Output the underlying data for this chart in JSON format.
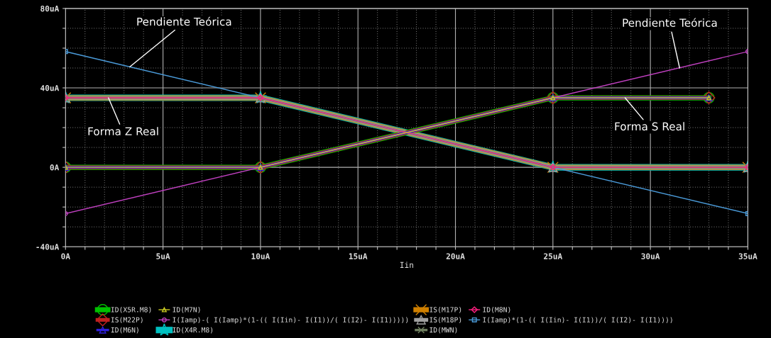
{
  "chart_data": {
    "type": "line",
    "xlabel": "Iin",
    "xlim": [
      0,
      35
    ],
    "ylim": [
      -40,
      80
    ],
    "xticks": [
      {
        "value": 0,
        "label": "0A"
      },
      {
        "value": 1,
        "label": null
      },
      {
        "value": 2,
        "label": null
      },
      {
        "value": 3,
        "label": null
      },
      {
        "value": 4,
        "label": null
      },
      {
        "value": 5,
        "label": "5uA"
      },
      {
        "value": 6,
        "label": null
      },
      {
        "value": 7,
        "label": null
      },
      {
        "value": 8,
        "label": null
      },
      {
        "value": 9,
        "label": null
      },
      {
        "value": 10,
        "label": "10uA"
      },
      {
        "value": 11,
        "label": null
      },
      {
        "value": 12,
        "label": null
      },
      {
        "value": 13,
        "label": null
      },
      {
        "value": 14,
        "label": null
      },
      {
        "value": 15,
        "label": "15uA"
      },
      {
        "value": 16,
        "label": null
      },
      {
        "value": 17,
        "label": null
      },
      {
        "value": 18,
        "label": null
      },
      {
        "value": 19,
        "label": null
      },
      {
        "value": 20,
        "label": "20uA"
      },
      {
        "value": 21,
        "label": null
      },
      {
        "value": 22,
        "label": null
      },
      {
        "value": 23,
        "label": null
      },
      {
        "value": 24,
        "label": null
      },
      {
        "value": 25,
        "label": "25uA"
      },
      {
        "value": 26,
        "label": null
      },
      {
        "value": 27,
        "label": null
      },
      {
        "value": 28,
        "label": null
      },
      {
        "value": 29,
        "label": null
      },
      {
        "value": 30,
        "label": "30uA"
      },
      {
        "value": 31,
        "label": null
      },
      {
        "value": 32,
        "label": null
      },
      {
        "value": 33,
        "label": null
      },
      {
        "value": 34,
        "label": null
      },
      {
        "value": 35,
        "label": "35uA"
      }
    ],
    "yticks": [
      {
        "value": -40,
        "label": "-40uA"
      },
      {
        "value": -30,
        "label": null
      },
      {
        "value": -20,
        "label": null
      },
      {
        "value": -10,
        "label": null
      },
      {
        "value": 0,
        "label": "0A"
      },
      {
        "value": 10,
        "label": null
      },
      {
        "value": 20,
        "label": null
      },
      {
        "value": 30,
        "label": null
      },
      {
        "value": 40,
        "label": "40uA"
      },
      {
        "value": 50,
        "label": null
      },
      {
        "value": 60,
        "label": null
      },
      {
        "value": 70,
        "label": null
      },
      {
        "value": 80,
        "label": "80uA"
      }
    ],
    "grid": true,
    "legend": "bottom",
    "series": [
      {
        "name": "ID(X5R.M8)",
        "color": "#00c000",
        "marker": "circle",
        "x": [
          0,
          10,
          25,
          33
        ],
        "values": [
          0,
          0,
          35,
          35
        ]
      },
      {
        "name": "IS(M22P)",
        "color": "#c02020",
        "marker": "diamond",
        "x": [
          0,
          10,
          25,
          33
        ],
        "values": [
          0,
          0,
          35,
          35
        ]
      },
      {
        "name": "ID(M6N)",
        "color": "#3020e0",
        "marker": "triangle",
        "x": [
          0,
          10,
          25,
          33
        ],
        "values": [
          0,
          0,
          35,
          35
        ]
      },
      {
        "name": "ID(M7N)",
        "color": "#c8c820",
        "marker": "triangle",
        "x": [
          0,
          10,
          25,
          33
        ],
        "values": [
          0,
          0,
          35,
          35
        ]
      },
      {
        "name": "I(Iamp)-( I(Iamp)*(1-(( I(Iin)- I(I1))/( I(I2)- I(I1)))))",
        "color": "#c040c0",
        "marker": "circle",
        "x": [
          0,
          35
        ],
        "values": [
          -23.3,
          58.3
        ]
      },
      {
        "name": "ID(X4R.M8)",
        "color": "#00c0c0",
        "marker": "star",
        "x": [
          0,
          10,
          25,
          35
        ],
        "values": [
          35,
          35,
          0,
          0
        ]
      },
      {
        "name": "IS(M17P)",
        "color": "#d08000",
        "marker": "cross",
        "x": [
          0,
          10,
          25,
          35
        ],
        "values": [
          35,
          35,
          0,
          0
        ]
      },
      {
        "name": "IS(M18P)",
        "color": "#a0a0a0",
        "marker": "triangle",
        "x": [
          0,
          10,
          25,
          35
        ],
        "values": [
          35,
          35,
          0,
          0
        ]
      },
      {
        "name": "ID(MWN)",
        "color": "#708060",
        "marker": "cross",
        "x": [
          0,
          10,
          25,
          35
        ],
        "values": [
          35,
          35,
          0,
          0
        ]
      },
      {
        "name": "ID(M8N)",
        "color": "#ff2080",
        "marker": "diamond",
        "x": [
          0,
          10,
          25,
          35
        ],
        "values": [
          35,
          35,
          0,
          0
        ]
      },
      {
        "name": "I(Iamp)*(1-(( I(Iin)- I(I1))/( I(I2)- I(I1))))",
        "color": "#4a9ad8",
        "marker": "square",
        "x": [
          0,
          35
        ],
        "values": [
          58.3,
          -23.3
        ]
      }
    ],
    "annotations": [
      {
        "text": "Pendiente Teórica",
        "x": 3.3,
        "y": 50.6
      },
      {
        "text": "Pendiente Teórica",
        "x": 31.5,
        "y": 50
      },
      {
        "text": "Forma Z Real",
        "x": 2.2,
        "y": 35
      },
      {
        "text": "Forma S Real",
        "x": 28.7,
        "y": 35
      }
    ]
  }
}
